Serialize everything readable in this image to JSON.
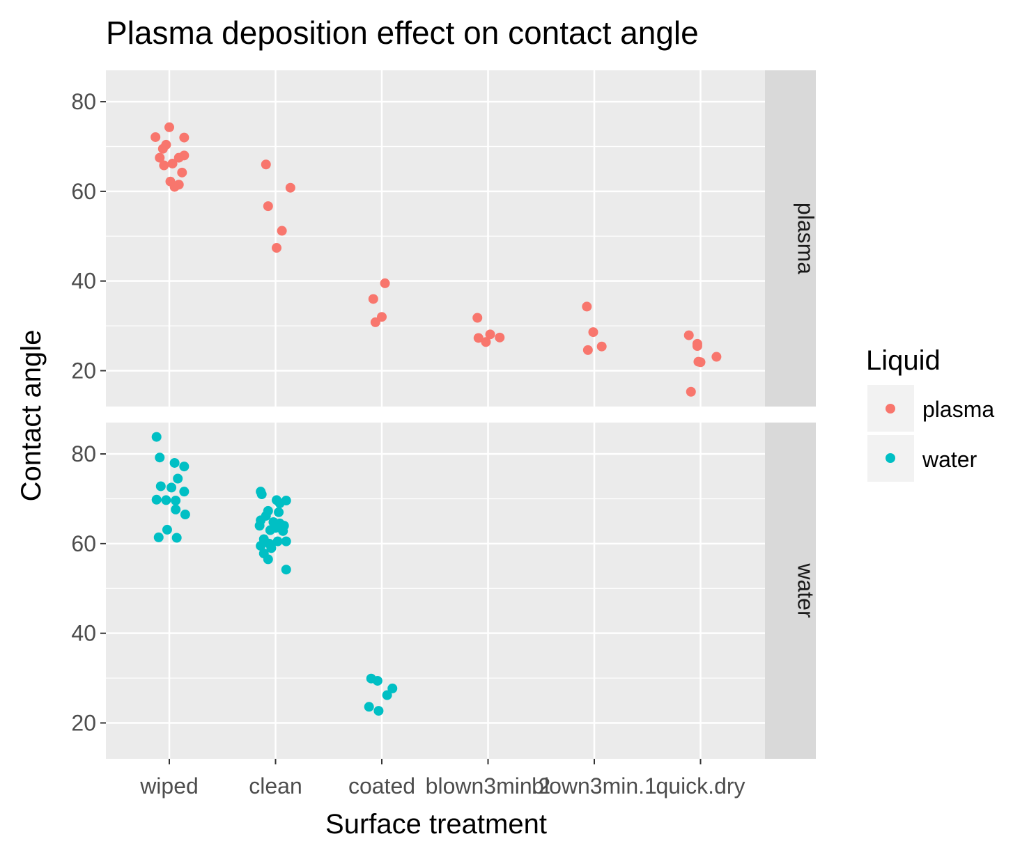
{
  "chart_data": {
    "type": "scatter",
    "title": "Plasma deposition effect on contact angle",
    "xlabel": "Surface treatment",
    "ylabel": "Contact angle",
    "categories": [
      "wiped",
      "clean",
      "coated",
      "blown3min.2",
      "blown3min.1",
      "quick.dry"
    ],
    "ylim": [
      12,
      87
    ],
    "yticks": [
      20,
      40,
      60,
      80
    ],
    "grid": true,
    "legend": {
      "title": "Liquid",
      "placement": "right",
      "entries": [
        {
          "name": "plasma",
          "color": "#F8766D"
        },
        {
          "name": "water",
          "color": "#00BFC4"
        }
      ]
    },
    "facets": [
      {
        "label": "plasma",
        "series": [
          {
            "name": "plasma",
            "color": "#F8766D",
            "points": [
              {
                "x": "wiped",
                "y": 72.1,
                "j": -0.13
              },
              {
                "x": "wiped",
                "y": 74.3,
                "j": 0.0
              },
              {
                "x": "wiped",
                "y": 72.0,
                "j": 0.14
              },
              {
                "x": "wiped",
                "y": 70.4,
                "j": -0.03
              },
              {
                "x": "wiped",
                "y": 69.5,
                "j": -0.06
              },
              {
                "x": "wiped",
                "y": 68.0,
                "j": 0.14
              },
              {
                "x": "wiped",
                "y": 67.5,
                "j": -0.09
              },
              {
                "x": "wiped",
                "y": 67.5,
                "j": 0.09
              },
              {
                "x": "wiped",
                "y": 66.2,
                "j": 0.03
              },
              {
                "x": "wiped",
                "y": 65.8,
                "j": -0.05
              },
              {
                "x": "wiped",
                "y": 64.2,
                "j": 0.12
              },
              {
                "x": "wiped",
                "y": 62.2,
                "j": 0.01
              },
              {
                "x": "wiped",
                "y": 61.5,
                "j": 0.09
              },
              {
                "x": "wiped",
                "y": 61.0,
                "j": 0.05
              },
              {
                "x": "clean",
                "y": 66.0,
                "j": -0.09
              },
              {
                "x": "clean",
                "y": 60.8,
                "j": 0.14
              },
              {
                "x": "clean",
                "y": 56.7,
                "j": -0.07
              },
              {
                "x": "clean",
                "y": 51.2,
                "j": 0.06
              },
              {
                "x": "clean",
                "y": 47.4,
                "j": 0.01
              },
              {
                "x": "coated",
                "y": 39.5,
                "j": 0.03
              },
              {
                "x": "coated",
                "y": 36.0,
                "j": -0.08
              },
              {
                "x": "coated",
                "y": 32.0,
                "j": 0.0
              },
              {
                "x": "coated",
                "y": 30.8,
                "j": -0.06
              },
              {
                "x": "blown3min.2",
                "y": 31.8,
                "j": -0.1
              },
              {
                "x": "blown3min.2",
                "y": 28.1,
                "j": 0.02
              },
              {
                "x": "blown3min.2",
                "y": 27.4,
                "j": 0.11
              },
              {
                "x": "blown3min.2",
                "y": 27.3,
                "j": -0.09
              },
              {
                "x": "blown3min.2",
                "y": 26.4,
                "j": -0.02
              },
              {
                "x": "blown3min.1",
                "y": 34.3,
                "j": -0.07
              },
              {
                "x": "blown3min.1",
                "y": 28.6,
                "j": -0.01
              },
              {
                "x": "blown3min.1",
                "y": 25.4,
                "j": 0.07
              },
              {
                "x": "blown3min.1",
                "y": 24.6,
                "j": -0.06
              },
              {
                "x": "quick.dry",
                "y": 27.9,
                "j": -0.11
              },
              {
                "x": "quick.dry",
                "y": 26.0,
                "j": -0.03
              },
              {
                "x": "quick.dry",
                "y": 25.5,
                "j": -0.03
              },
              {
                "x": "quick.dry",
                "y": 23.1,
                "j": 0.15
              },
              {
                "x": "quick.dry",
                "y": 22.0,
                "j": -0.02
              },
              {
                "x": "quick.dry",
                "y": 21.9,
                "j": 0.0
              },
              {
                "x": "quick.dry",
                "y": 15.3,
                "j": -0.09
              }
            ]
          }
        ]
      },
      {
        "label": "water",
        "series": [
          {
            "name": "water",
            "color": "#00BFC4",
            "points": [
              {
                "x": "wiped",
                "y": 83.8,
                "j": -0.12
              },
              {
                "x": "wiped",
                "y": 79.2,
                "j": -0.09
              },
              {
                "x": "wiped",
                "y": 78.0,
                "j": 0.05
              },
              {
                "x": "wiped",
                "y": 77.2,
                "j": 0.14
              },
              {
                "x": "wiped",
                "y": 74.5,
                "j": 0.08
              },
              {
                "x": "wiped",
                "y": 72.8,
                "j": -0.08
              },
              {
                "x": "wiped",
                "y": 72.5,
                "j": 0.02
              },
              {
                "x": "wiped",
                "y": 71.6,
                "j": 0.14
              },
              {
                "x": "wiped",
                "y": 69.8,
                "j": -0.12
              },
              {
                "x": "wiped",
                "y": 69.6,
                "j": 0.06
              },
              {
                "x": "wiped",
                "y": 69.7,
                "j": -0.03
              },
              {
                "x": "wiped",
                "y": 67.6,
                "j": 0.06
              },
              {
                "x": "wiped",
                "y": 66.5,
                "j": 0.15
              },
              {
                "x": "wiped",
                "y": 63.1,
                "j": -0.02
              },
              {
                "x": "wiped",
                "y": 61.4,
                "j": -0.1
              },
              {
                "x": "wiped",
                "y": 61.3,
                "j": 0.07
              },
              {
                "x": "clean",
                "y": 71.6,
                "j": -0.14
              },
              {
                "x": "clean",
                "y": 71.0,
                "j": -0.13
              },
              {
                "x": "clean",
                "y": 69.7,
                "j": 0.01
              },
              {
                "x": "clean",
                "y": 69.6,
                "j": 0.1
              },
              {
                "x": "clean",
                "y": 69.0,
                "j": 0.04
              },
              {
                "x": "clean",
                "y": 67.3,
                "j": -0.07
              },
              {
                "x": "clean",
                "y": 67.0,
                "j": 0.03
              },
              {
                "x": "clean",
                "y": 66.2,
                "j": -0.09
              },
              {
                "x": "clean",
                "y": 65.2,
                "j": -0.14
              },
              {
                "x": "clean",
                "y": 64.8,
                "j": -0.02
              },
              {
                "x": "clean",
                "y": 64.5,
                "j": 0.04
              },
              {
                "x": "clean",
                "y": 64.0,
                "j": -0.15
              },
              {
                "x": "clean",
                "y": 64.0,
                "j": 0.08
              },
              {
                "x": "clean",
                "y": 63.5,
                "j": 0.0
              },
              {
                "x": "clean",
                "y": 63.0,
                "j": -0.05
              },
              {
                "x": "clean",
                "y": 62.8,
                "j": 0.07
              },
              {
                "x": "clean",
                "y": 61.0,
                "j": -0.11
              },
              {
                "x": "clean",
                "y": 60.5,
                "j": 0.02
              },
              {
                "x": "clean",
                "y": 60.5,
                "j": 0.1
              },
              {
                "x": "clean",
                "y": 60.0,
                "j": -0.06
              },
              {
                "x": "clean",
                "y": 59.5,
                "j": -0.14
              },
              {
                "x": "clean",
                "y": 59.0,
                "j": -0.04
              },
              {
                "x": "clean",
                "y": 57.8,
                "j": -0.11
              },
              {
                "x": "clean",
                "y": 56.5,
                "j": -0.07
              },
              {
                "x": "clean",
                "y": 54.2,
                "j": 0.1
              },
              {
                "x": "coated",
                "y": 29.9,
                "j": -0.1
              },
              {
                "x": "coated",
                "y": 29.4,
                "j": -0.04
              },
              {
                "x": "coated",
                "y": 27.7,
                "j": 0.1
              },
              {
                "x": "coated",
                "y": 26.2,
                "j": 0.05
              },
              {
                "x": "coated",
                "y": 23.6,
                "j": -0.12
              },
              {
                "x": "coated",
                "y": 22.7,
                "j": -0.03
              }
            ]
          }
        ]
      }
    ]
  }
}
